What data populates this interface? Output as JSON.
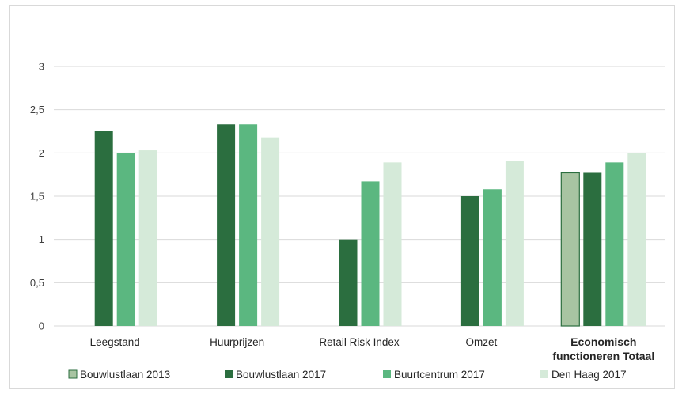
{
  "chart_data": {
    "type": "bar",
    "title": "",
    "xlabel": "",
    "ylabel": "",
    "ylim": [
      0,
      3
    ],
    "yticks": [
      "0",
      "0,5",
      "1",
      "1,5",
      "2",
      "2,5",
      "3"
    ],
    "categories": [
      "Leegstand",
      "Huurprijzen",
      "Retail Risk Index",
      "Omzet",
      "Economisch functioneren Totaal"
    ],
    "category_lines": [
      [
        "Leegstand"
      ],
      [
        "Huurprijzen"
      ],
      [
        "Retail Risk Index"
      ],
      [
        "Omzet"
      ],
      [
        "Economisch",
        "functioneren Totaal"
      ]
    ],
    "bold_categories": [
      4
    ],
    "grid": true,
    "legend_position": "bottom",
    "series": [
      {
        "name": "Bouwlustlaan 2013",
        "color": "#a8c4a2",
        "outline": "#2b6e3f",
        "values": [
          null,
          null,
          null,
          null,
          1.77
        ]
      },
      {
        "name": "Bouwlustlaan 2017",
        "color": "#2b6e3f",
        "values": [
          2.25,
          2.33,
          1.0,
          1.5,
          1.77
        ]
      },
      {
        "name": "Buurtcentrum 2017",
        "color": "#5bb780",
        "values": [
          2.0,
          2.33,
          1.67,
          1.58,
          1.89
        ]
      },
      {
        "name": "Den Haag 2017",
        "color": "#d5ead9",
        "values": [
          2.03,
          2.18,
          1.89,
          1.91,
          2.0
        ]
      }
    ]
  }
}
